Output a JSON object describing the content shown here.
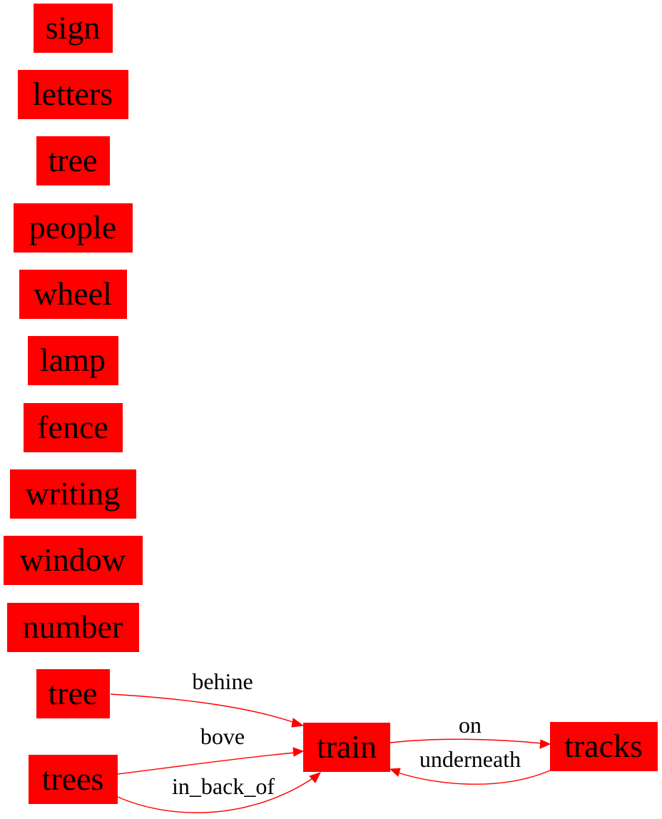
{
  "nodes": {
    "sign": "sign",
    "letters": "letters",
    "tree_1": "tree",
    "people": "people",
    "wheel": "wheel",
    "lamp": "lamp",
    "fence": "fence",
    "writing": "writing",
    "window": "window",
    "number": "number",
    "tree_2": "tree",
    "trees": "trees",
    "train": "train",
    "tracks": "tracks"
  },
  "edges": [
    {
      "from": "tree_2",
      "to": "train",
      "label": "behine"
    },
    {
      "from": "trees",
      "to": "train",
      "label": "bove"
    },
    {
      "from": "trees",
      "to": "train",
      "label": "in_back_of"
    },
    {
      "from": "train",
      "to": "tracks",
      "label": "on"
    },
    {
      "from": "tracks",
      "to": "train",
      "label": "underneath"
    }
  ],
  "colors": {
    "node_fill": "#ff0000",
    "edge": "#ff0000",
    "text": "#000000"
  }
}
